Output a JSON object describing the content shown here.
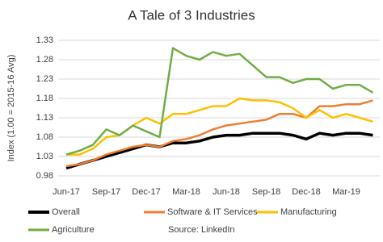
{
  "chart_data": {
    "type": "line",
    "title": "A Tale of 3 Industries",
    "y_label": "Index (1.00 = 2015-16 Avg)",
    "annotation": "Source: LinkedIn",
    "categories": [
      "Jun-17",
      null,
      null,
      "Sep-17",
      null,
      null,
      "Dec-17",
      null,
      null,
      "Mar-18",
      null,
      null,
      "Jun-18",
      null,
      null,
      "Sep-18",
      null,
      null,
      "Dec-18",
      null,
      null,
      "Mar-19",
      null,
      null
    ],
    "series": [
      {
        "name": "Overall",
        "color": "#000000",
        "values": [
          1.0,
          1.01,
          1.02,
          1.03,
          1.04,
          1.05,
          1.06,
          1.055,
          1.065,
          1.065,
          1.07,
          1.08,
          1.085,
          1.085,
          1.09,
          1.09,
          1.09,
          1.085,
          1.075,
          1.09,
          1.085,
          1.09,
          1.09,
          1.085
        ]
      },
      {
        "name": "Software & IT Services",
        "color": "#ed7d31",
        "values": [
          1.005,
          1.01,
          1.02,
          1.035,
          1.045,
          1.055,
          1.06,
          1.055,
          1.07,
          1.075,
          1.085,
          1.1,
          1.11,
          1.115,
          1.12,
          1.125,
          1.14,
          1.14,
          1.13,
          1.16,
          1.16,
          1.165,
          1.165,
          1.175
        ]
      },
      {
        "name": "Manufacturing",
        "color": "#ffc000",
        "values": [
          1.035,
          1.035,
          1.05,
          1.08,
          1.085,
          1.11,
          1.13,
          1.115,
          1.14,
          1.14,
          1.15,
          1.16,
          1.16,
          1.18,
          1.175,
          1.175,
          1.17,
          1.155,
          1.13,
          1.15,
          1.13,
          1.14,
          1.13,
          1.12
        ]
      },
      {
        "name": "Agriculture",
        "color": "#70ad47",
        "values": [
          1.035,
          1.045,
          1.06,
          1.1,
          1.085,
          1.11,
          1.095,
          1.08,
          1.31,
          1.29,
          1.28,
          1.3,
          1.29,
          1.295,
          1.265,
          1.235,
          1.235,
          1.22,
          1.23,
          1.23,
          1.205,
          1.215,
          1.215,
          1.195
        ]
      }
    ],
    "ylim": [
      0.98,
      1.33
    ],
    "yticks": [
      0.98,
      1.03,
      1.08,
      1.13,
      1.18,
      1.23,
      1.28,
      1.33
    ],
    "grid": true
  }
}
